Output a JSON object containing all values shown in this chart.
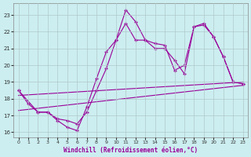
{
  "xlabel": "Windchill (Refroidissement éolien,°C)",
  "background_color": "#cceef0",
  "line_color": "#990099",
  "grid_color": "#b0c8ca",
  "xlim": [
    -0.5,
    23.5
  ],
  "ylim": [
    15.7,
    23.7
  ],
  "yticks": [
    16,
    17,
    18,
    19,
    20,
    21,
    22,
    23
  ],
  "xticks": [
    0,
    1,
    2,
    3,
    4,
    5,
    6,
    7,
    8,
    9,
    10,
    11,
    12,
    13,
    14,
    15,
    16,
    17,
    18,
    19,
    20,
    21,
    22,
    23
  ],
  "line1_x": [
    0,
    1,
    2,
    3,
    4,
    5,
    6,
    7,
    8,
    9,
    10,
    11,
    12,
    13,
    14,
    15,
    16,
    17,
    18,
    19,
    20,
    21,
    22,
    23
  ],
  "line1_y": [
    18.5,
    17.7,
    17.2,
    17.2,
    16.7,
    16.3,
    16.1,
    17.5,
    19.2,
    20.8,
    21.5,
    23.3,
    22.6,
    21.5,
    21.3,
    21.2,
    19.7,
    20.0,
    22.3,
    22.4,
    21.7,
    20.5,
    19.0,
    18.9
  ],
  "line2_x": [
    0,
    2,
    3,
    4,
    5,
    6,
    7,
    8,
    9,
    10,
    11,
    12,
    13,
    14,
    15,
    16,
    17,
    18,
    19,
    20,
    21,
    22,
    23
  ],
  "line2_y": [
    18.5,
    17.2,
    17.2,
    16.8,
    16.7,
    16.5,
    17.2,
    18.5,
    19.8,
    21.5,
    22.5,
    21.5,
    21.5,
    21.0,
    21.0,
    20.3,
    19.5,
    22.3,
    22.5,
    21.7,
    20.5,
    19.0,
    18.9
  ],
  "line3_x": [
    0,
    23
  ],
  "line3_y": [
    18.2,
    19.0
  ],
  "line4_x": [
    0,
    23
  ],
  "line4_y": [
    17.3,
    18.8
  ]
}
